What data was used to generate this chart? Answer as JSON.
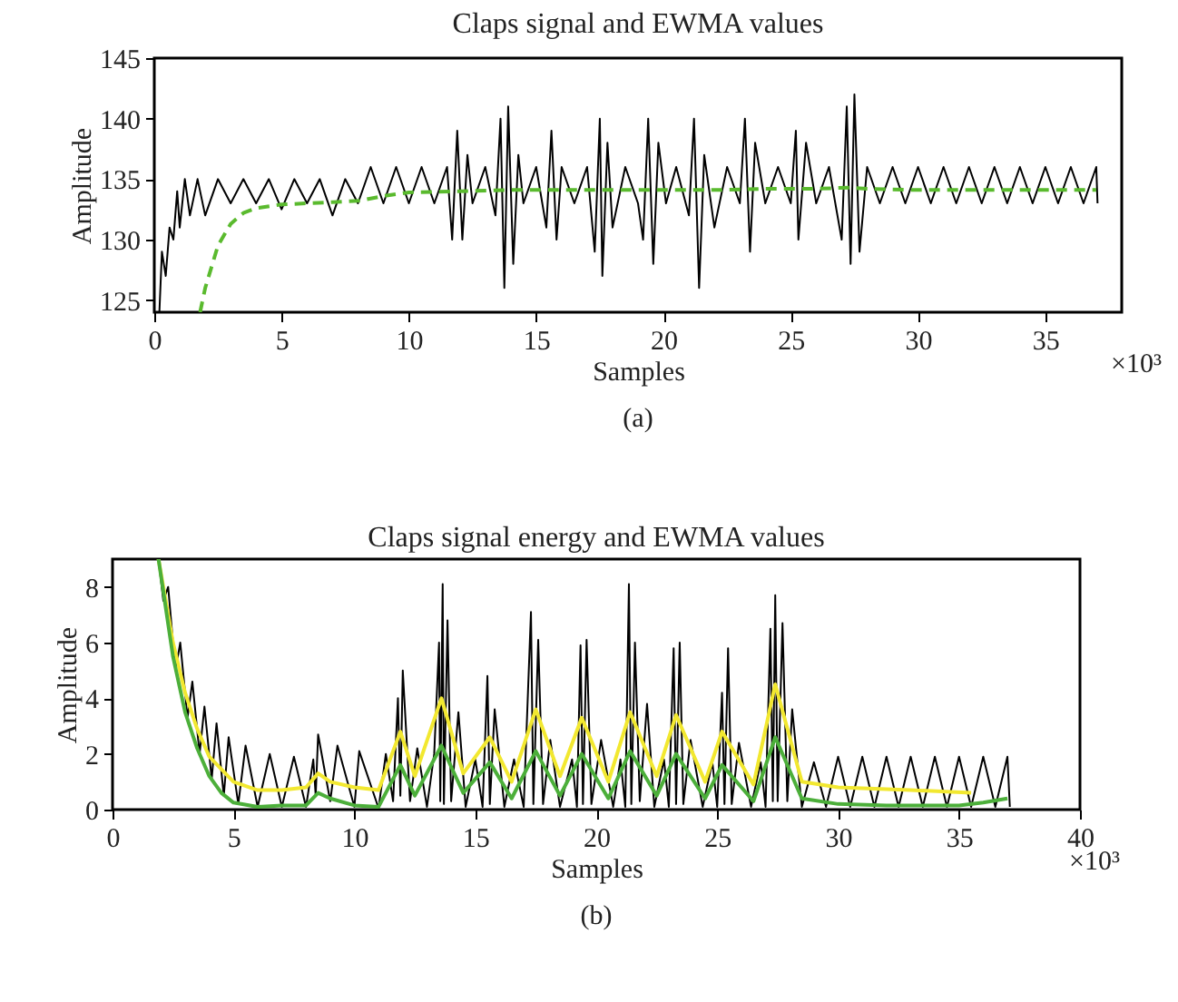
{
  "chart_data": [
    {
      "type": "line",
      "title": "Claps signal and EWMA values",
      "xlabel": "Samples",
      "ylabel": "Amplitude",
      "xlim": [
        0,
        38
      ],
      "xticks": [
        0,
        5,
        10,
        15,
        20,
        25,
        30,
        35
      ],
      "ylim": [
        124,
        145
      ],
      "yticks": [
        125,
        130,
        135,
        140,
        145
      ],
      "annotations": [
        "×10³",
        "(a)"
      ],
      "series": [
        {
          "color": "#000000",
          "x": [
            0.2,
            0.3,
            0.45,
            0.6,
            0.75,
            0.9,
            1.0,
            1.2,
            1.4,
            1.7,
            2.0,
            2.5,
            3,
            3.5,
            4,
            4.5,
            5,
            5.5,
            6,
            6.5,
            7,
            7.5,
            8,
            8.5,
            9,
            9.5,
            10,
            10.5,
            11,
            11.5,
            11.7,
            11.9,
            12.1,
            12.3,
            12.5,
            13,
            13.4,
            13.6,
            13.75,
            13.9,
            14.1,
            14.3,
            14.5,
            15,
            15.4,
            15.6,
            15.8,
            16,
            16.5,
            17,
            17.3,
            17.5,
            17.6,
            17.8,
            18,
            18.5,
            19,
            19.2,
            19.4,
            19.6,
            19.8,
            20.1,
            20.5,
            21,
            21.2,
            21.4,
            21.6,
            22,
            22.5,
            23,
            23.2,
            23.4,
            23.6,
            24,
            24.5,
            25,
            25.2,
            25.3,
            25.6,
            26,
            26.5,
            27,
            27.2,
            27.35,
            27.5,
            27.7,
            28,
            28.5,
            29,
            29.5,
            30,
            30.5,
            31,
            31.5,
            32,
            32.5,
            33,
            33.5,
            34,
            34.5,
            35,
            35.5,
            36,
            36.5,
            37,
            37.05
          ],
          "values": [
            124,
            129,
            127,
            131,
            130,
            134,
            131,
            135,
            132,
            135,
            132,
            135,
            133,
            135,
            133,
            135,
            132.5,
            135,
            133,
            135,
            132,
            135,
            133,
            136,
            133,
            136,
            133,
            136,
            133,
            136,
            130,
            139,
            130,
            137,
            133,
            136,
            132,
            140,
            126,
            141,
            128,
            137,
            133,
            136,
            131,
            139,
            130,
            136,
            133,
            136,
            129,
            140,
            127,
            138,
            131,
            136,
            133,
            130,
            140,
            128,
            138,
            133,
            136,
            132,
            140,
            126,
            137,
            131,
            136,
            133,
            140,
            129,
            138,
            133,
            136,
            133,
            139,
            130,
            138,
            133,
            136,
            130,
            141,
            128,
            142,
            129,
            136,
            133,
            136,
            133,
            136,
            133,
            136,
            133,
            136,
            133,
            136,
            133,
            136,
            133,
            136,
            133,
            136,
            133,
            136,
            133
          ]
        },
        {
          "color": "#5aba2e",
          "line_style": "dashed",
          "x": [
            1.8,
            2,
            2.5,
            3,
            3.5,
            4,
            5,
            6,
            7,
            8,
            9,
            10,
            12,
            14,
            16,
            18,
            20,
            22,
            24,
            26,
            27.3,
            28,
            30,
            32,
            35,
            37
          ],
          "values": [
            124,
            126,
            129.5,
            131.3,
            132.2,
            132.6,
            132.9,
            133,
            133.1,
            133.2,
            133.6,
            133.9,
            134,
            134.1,
            134.1,
            134.1,
            134.1,
            134.1,
            134.2,
            134.2,
            134.3,
            134.2,
            134.1,
            134.1,
            134.1,
            134.1
          ]
        }
      ]
    },
    {
      "type": "line",
      "title": "Claps signal energy and EWMA values",
      "xlabel": "Samples",
      "ylabel": "Amplitude",
      "xlim": [
        0,
        40
      ],
      "xticks": [
        0,
        5,
        10,
        15,
        20,
        25,
        30,
        35,
        40
      ],
      "ylim": [
        0,
        9
      ],
      "yticks": [
        0,
        2,
        4,
        6,
        8
      ],
      "annotations": [
        "×10³",
        "(b)"
      ],
      "series": [
        {
          "color": "#000000",
          "x": [
            1.9,
            2.1,
            2.3,
            2.6,
            2.8,
            3.1,
            3.3,
            3.6,
            3.8,
            4.1,
            4.3,
            4.6,
            4.8,
            5.2,
            5.5,
            6,
            6.5,
            7,
            7.5,
            8,
            8.3,
            8.4,
            8.5,
            9,
            9.3,
            10,
            10.2,
            11,
            11.3,
            11.6,
            11.8,
            11.9,
            12.0,
            12.3,
            12.6,
            13,
            13.3,
            13.5,
            13.55,
            13.65,
            13.7,
            13.85,
            14.0,
            14.3,
            14.6,
            15,
            15.3,
            15.5,
            15.6,
            15.8,
            16.2,
            16.6,
            17,
            17.3,
            17.4,
            17.6,
            17.8,
            18.1,
            18.5,
            19,
            19.2,
            19.35,
            19.45,
            19.6,
            19.8,
            20.2,
            20.7,
            21,
            21.2,
            21.35,
            21.45,
            21.6,
            21.8,
            22.1,
            22.4,
            22.8,
            23.0,
            23.2,
            23.3,
            23.45,
            23.6,
            23.9,
            24.4,
            24.8,
            25.0,
            25.2,
            25.3,
            25.45,
            25.6,
            25.9,
            26.4,
            26.8,
            27.0,
            27.2,
            27.3,
            27.4,
            27.5,
            27.7,
            27.9,
            28.1,
            28.5,
            29,
            29.5,
            30,
            30.5,
            31,
            31.5,
            32,
            32.5,
            33,
            33.5,
            34,
            34.5,
            35,
            35.5,
            36,
            36.5,
            37,
            37.1
          ],
          "values": [
            9,
            7.5,
            8,
            5,
            6,
            3.3,
            4.6,
            2.0,
            3.7,
            1.1,
            3.1,
            0.5,
            2.6,
            0.2,
            2.3,
            0.1,
            2.0,
            0.1,
            1.9,
            0.1,
            1.8,
            0.5,
            2.7,
            0.3,
            2.3,
            0.1,
            2.1,
            0.05,
            2.0,
            0.3,
            4,
            0.5,
            5,
            0.3,
            2.2,
            0.1,
            2.0,
            6,
            0.3,
            8.1,
            0.2,
            6.8,
            0.3,
            3.5,
            0.1,
            1.8,
            0.1,
            4.8,
            0.2,
            3.6,
            0.1,
            1.8,
            0.1,
            7.1,
            0.2,
            6.1,
            0.2,
            2.5,
            0.1,
            1.8,
            0.1,
            5.9,
            0.2,
            6.1,
            0.2,
            2.5,
            0.1,
            1.8,
            0.1,
            8.1,
            0.2,
            6,
            0.3,
            3.8,
            0.1,
            1.8,
            0.1,
            5.8,
            0.2,
            6,
            0.2,
            2.5,
            0.1,
            1.7,
            0.1,
            4.2,
            0.2,
            5.8,
            0.2,
            2.4,
            0.1,
            1.7,
            0.1,
            6.5,
            0.3,
            7.7,
            0.3,
            6.7,
            0.3,
            3.6,
            0.1,
            1.7,
            0.1,
            1.9,
            0.1,
            1.9,
            0.1,
            1.9,
            0.1,
            1.9,
            0.1,
            1.9,
            0.1,
            1.9,
            0.1,
            1.9,
            0.1,
            1.9,
            0.1
          ]
        },
        {
          "color": "#f2e830",
          "x": [
            1.9,
            2.5,
            3,
            3.5,
            4,
            5,
            6,
            7,
            8,
            8.5,
            9,
            10,
            11,
            11.9,
            12.5,
            13.6,
            14.5,
            15.6,
            16.5,
            17.5,
            18.5,
            19.4,
            20.5,
            21.4,
            22.5,
            23.3,
            24.5,
            25.2,
            26.5,
            27.4,
            28.5,
            30,
            33,
            35.5
          ],
          "values": [
            9,
            6,
            4.2,
            2.9,
            1.9,
            1.0,
            0.7,
            0.7,
            0.8,
            1.3,
            1.0,
            0.8,
            0.7,
            2.8,
            1.2,
            4,
            1.3,
            2.6,
            1.0,
            3.6,
            1.2,
            3.3,
            1.0,
            3.5,
            1.2,
            3.4,
            1.0,
            2.8,
            0.9,
            4.5,
            1.0,
            0.8,
            0.7,
            0.6
          ]
        },
        {
          "color": "#4caf3a",
          "x": [
            1.9,
            2.5,
            3,
            3.5,
            4,
            4.5,
            5,
            6,
            7,
            8,
            8.5,
            9,
            10,
            11,
            11.9,
            12.5,
            13.6,
            14.5,
            15.6,
            16.5,
            17.5,
            18.5,
            19.4,
            20.5,
            21.4,
            22.5,
            23.3,
            24.5,
            25.2,
            26.5,
            27.4,
            28.5,
            30,
            32,
            35,
            36,
            37
          ],
          "values": [
            9,
            5.5,
            3.5,
            2.2,
            1.2,
            0.6,
            0.25,
            0.1,
            0.15,
            0.15,
            0.6,
            0.4,
            0.15,
            0.1,
            1.6,
            0.5,
            2.3,
            0.6,
            1.7,
            0.4,
            2.1,
            0.5,
            2,
            0.4,
            2.1,
            0.5,
            2,
            0.4,
            1.6,
            0.3,
            2.6,
            0.4,
            0.2,
            0.15,
            0.15,
            0.25,
            0.4
          ]
        }
      ]
    }
  ]
}
